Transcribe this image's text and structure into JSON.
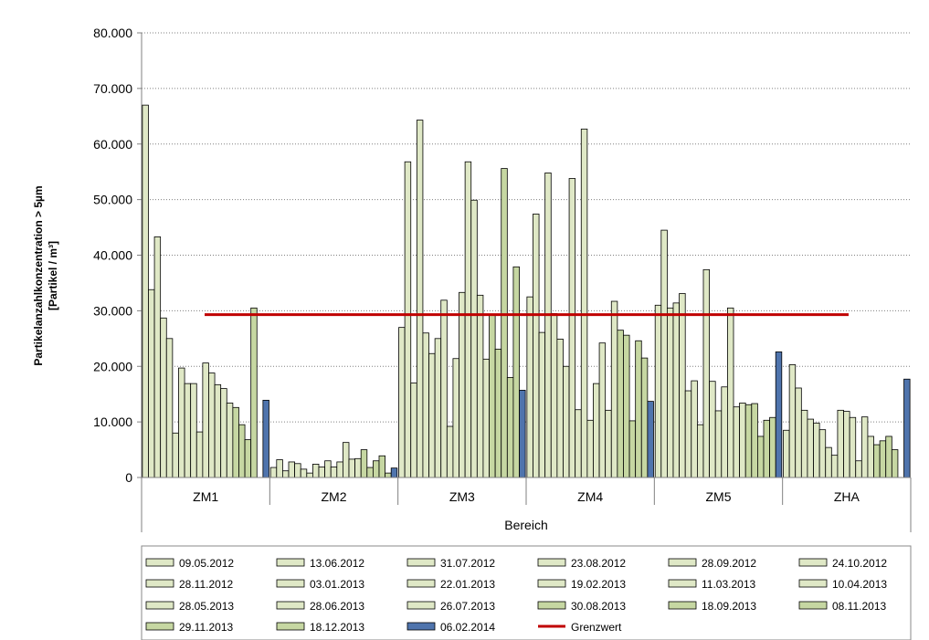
{
  "chart_data": {
    "type": "bar",
    "xlabel": "Bereich",
    "ylabel_line1": "Partikelanzahlkonzentration  > 5µm",
    "ylabel_line2": "[Partikel / m³]",
    "ylim": [
      0,
      80000
    ],
    "yticks": [
      "0",
      "10.000",
      "20.000",
      "30.000",
      "40.000",
      "50.000",
      "60.000",
      "70.000",
      "80.000"
    ],
    "grid": "horizontal dotted",
    "legend_position": "bottom",
    "categories": [
      "ZM1",
      "ZM2",
      "ZM3",
      "ZM4",
      "ZM5",
      "ZHA"
    ],
    "series": [
      {
        "name": "09.05.2012",
        "color": "#dfe8c6",
        "values": [
          67000,
          1800,
          27000,
          32500,
          31000,
          8500
        ]
      },
      {
        "name": "13.06.2012",
        "color": "#dfe8c6",
        "values": [
          33800,
          3200,
          56800,
          47400,
          44500,
          20300
        ]
      },
      {
        "name": "31.07.2012",
        "color": "#dfe8c6",
        "values": [
          43300,
          1200,
          17000,
          26100,
          30500,
          16100
        ]
      },
      {
        "name": "23.08.2012",
        "color": "#dfe8c6",
        "values": [
          28700,
          2800,
          64300,
          54800,
          31400,
          12100
        ]
      },
      {
        "name": "28.09.2012",
        "color": "#dfe8c6",
        "values": [
          25000,
          2500,
          26000,
          29500,
          33100,
          10500
        ]
      },
      {
        "name": "24.10.2012",
        "color": "#dfe8c6",
        "values": [
          8000,
          1500,
          22300,
          24900,
          15600,
          9800
        ]
      },
      {
        "name": "28.11.2012",
        "color": "#dfe8c6",
        "values": [
          19700,
          800,
          25000,
          20000,
          17400,
          8600
        ]
      },
      {
        "name": "03.01.2013",
        "color": "#dfe8c6",
        "values": [
          16900,
          2400,
          31900,
          53800,
          9500,
          5400
        ]
      },
      {
        "name": "22.01.2013",
        "color": "#dfe8c6",
        "values": [
          16900,
          1900,
          9200,
          12200,
          37400,
          4000
        ]
      },
      {
        "name": "19.02.2013",
        "color": "#dfe8c6",
        "values": [
          8200,
          3000,
          21400,
          62700,
          17300,
          12100
        ]
      },
      {
        "name": "11.03.2013",
        "color": "#dfe8c6",
        "values": [
          20600,
          1900,
          33300,
          10300,
          12000,
          11900
        ]
      },
      {
        "name": "10.04.2013",
        "color": "#dfe8c6",
        "values": [
          18800,
          2800,
          56800,
          16900,
          16300,
          10800
        ]
      },
      {
        "name": "28.05.2013",
        "color": "#dfe8c6",
        "values": [
          16700,
          6300,
          49900,
          24200,
          30500,
          3000
        ]
      },
      {
        "name": "28.06.2013",
        "color": "#dfe8c6",
        "values": [
          16000,
          3300,
          32800,
          12100,
          12700,
          10900
        ]
      },
      {
        "name": "26.07.2013",
        "color": "#dfe8c6",
        "values": [
          13400,
          3400,
          21300,
          31700,
          13400,
          7400
        ]
      },
      {
        "name": "30.08.2013",
        "color": "#c6d7a2",
        "values": [
          12600,
          5000,
          29300,
          26500,
          13100,
          5900
        ]
      },
      {
        "name": "18.09.2013",
        "color": "#c6d7a2",
        "values": [
          9500,
          1800,
          23100,
          25600,
          13300,
          6600
        ]
      },
      {
        "name": "08.11.2013",
        "color": "#c6d7a2",
        "values": [
          6800,
          3000,
          55600,
          10200,
          7400,
          7400
        ]
      },
      {
        "name": "29.11.2013",
        "color": "#c6d7a2",
        "values": [
          30500,
          3900,
          18000,
          24600,
          10300,
          5000
        ]
      },
      {
        "name": "18.12.2013",
        "color": "#c6d7a2",
        "values": [
          null,
          800,
          37900,
          21500,
          10800,
          null
        ]
      },
      {
        "name": "06.02.2014",
        "color": "#4f74ad",
        "values": [
          13900,
          1700,
          15700,
          13700,
          22600,
          17700
        ]
      }
    ],
    "reference_line": {
      "name": "Grenzwert",
      "value": 29300,
      "color": "#c00000",
      "x_start_category": 0,
      "x_end_category": 4
    }
  }
}
